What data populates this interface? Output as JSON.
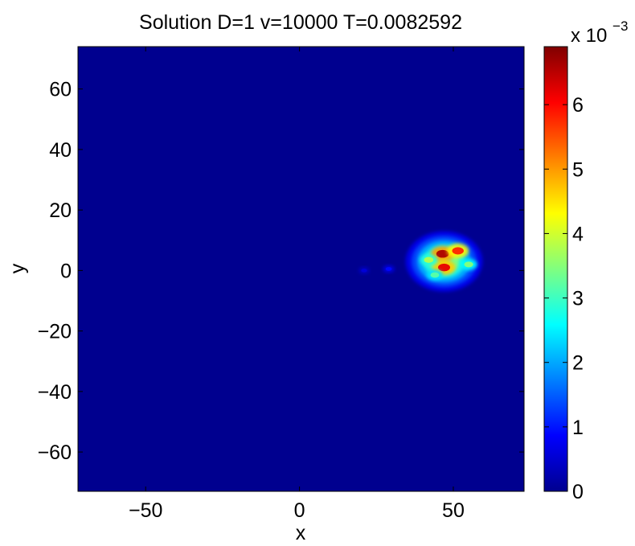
{
  "chart_data": {
    "type": "heatmap",
    "title": "Solution D=1 v=10000 T=0.0082592",
    "xlabel": "x",
    "ylabel": "y",
    "xlim": [
      -72,
      73
    ],
    "ylim": [
      -73,
      74
    ],
    "xticks": [
      -50,
      0,
      50
    ],
    "xtick_labels": [
      "−50",
      "0",
      "50"
    ],
    "yticks": [
      -60,
      -40,
      -20,
      0,
      20,
      40,
      60
    ],
    "ytick_labels": [
      "−60",
      "−40",
      "−20",
      "0",
      "20",
      "40",
      "60"
    ],
    "colormap": "jet",
    "clim": [
      0,
      0.0069
    ],
    "colorbar_ticks": [
      0,
      1,
      2,
      3,
      4,
      5,
      6
    ],
    "colorbar_tick_labels": [
      "0",
      "1",
      "2",
      "3",
      "4",
      "5",
      "6"
    ],
    "colorbar_multiplier_base": "x 10",
    "colorbar_multiplier_exponent": "−3",
    "grid": false,
    "background_value": 0,
    "blob": {
      "center": [
        47,
        3
      ],
      "extent_x": [
        37,
        62
      ],
      "extent_y": [
        -8,
        12
      ],
      "peaks": [
        {
          "x": 46.5,
          "y": 5.5,
          "value": 0.0066
        },
        {
          "x": 51.5,
          "y": 6.5,
          "value": 0.0058
        },
        {
          "x": 47.0,
          "y": 1.0,
          "value": 0.0062
        },
        {
          "x": 42.0,
          "y": 3.5,
          "value": 0.0038
        },
        {
          "x": 55.0,
          "y": 2.0,
          "value": 0.0035
        },
        {
          "x": 44.0,
          "y": -1.5,
          "value": 0.0032
        },
        {
          "x": 29.0,
          "y": 0.5,
          "value": 0.0009
        },
        {
          "x": 21.0,
          "y": 0.0,
          "value": 0.0006
        }
      ]
    }
  }
}
